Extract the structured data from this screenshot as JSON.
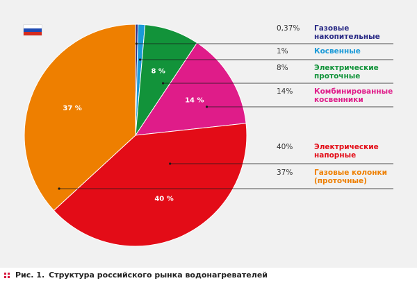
{
  "chart_data": {
    "type": "pie",
    "slices": [
      {
        "label": "Газовые\nнакопительные",
        "pct_label": "0,37%",
        "value": 0.37,
        "color": "#2a2b86",
        "slice_label": ""
      },
      {
        "label": "Косвенные",
        "pct_label": "1%",
        "value": 1,
        "color": "#1a9ad8",
        "slice_label": ""
      },
      {
        "label": "Электрические\nпроточные",
        "pct_label": "8%",
        "value": 8,
        "color": "#12933a",
        "slice_label": "8 %"
      },
      {
        "label": "Комбинированные\nкосвенники",
        "pct_label": "14%",
        "value": 14,
        "color": "#df1c89",
        "slice_label": "14 %"
      },
      {
        "label": "Электрические\nнапорные",
        "pct_label": "40%",
        "value": 40,
        "color": "#e30c17",
        "slice_label": "40 %"
      },
      {
        "label": "Газовые колонки\n(проточные)",
        "pct_label": "37%",
        "value": 37,
        "color": "#ee7f00",
        "slice_label": "37 %"
      }
    ],
    "flag_colors": [
      "#ffffff",
      "#1f4bb3",
      "#d52b1e"
    ]
  },
  "caption": {
    "figure": "Рис. 1.",
    "text": "Структура российского рынка водонагревателей"
  }
}
